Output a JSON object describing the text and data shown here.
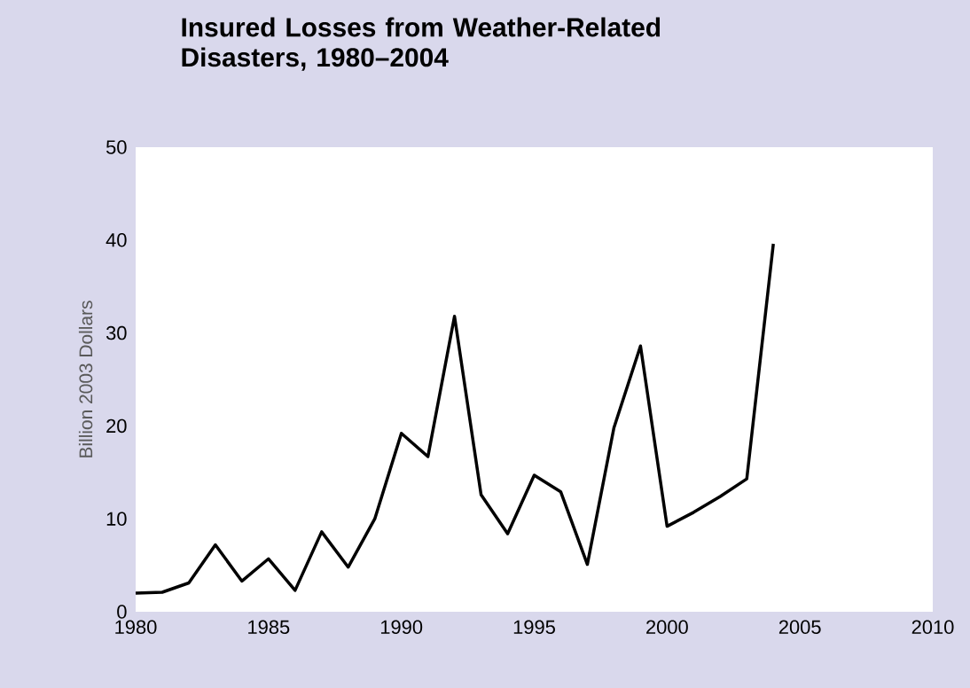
{
  "chart_data": {
    "type": "line",
    "title": "Insured Losses from Weather-Related Disasters, 1980–2004",
    "ylabel": "Billion 2003 Dollars",
    "x": [
      1980,
      1981,
      1982,
      1983,
      1984,
      1985,
      1986,
      1987,
      1988,
      1989,
      1990,
      1991,
      1992,
      1993,
      1994,
      1995,
      1996,
      1997,
      1998,
      1999,
      2000,
      2001,
      2002,
      2003,
      2004
    ],
    "series": [
      {
        "color": "#000000",
        "values": [
          2.0,
          2.1,
          3.1,
          7.2,
          3.3,
          5.7,
          2.3,
          8.6,
          4.8,
          10.0,
          19.2,
          16.7,
          31.8,
          12.6,
          8.4,
          14.7,
          12.9,
          5.1,
          19.8,
          28.6,
          9.2,
          10.7,
          12.4,
          14.3,
          39.6
        ]
      }
    ],
    "xlim": [
      1980,
      2010
    ],
    "xticks": [
      1980,
      1985,
      1990,
      1995,
      2000,
      2005,
      2010
    ],
    "ylim": [
      0,
      50
    ],
    "yticks": [
      0,
      10,
      20,
      30,
      40,
      50
    ],
    "grid": false,
    "marker": "none",
    "line_style": "solid"
  }
}
